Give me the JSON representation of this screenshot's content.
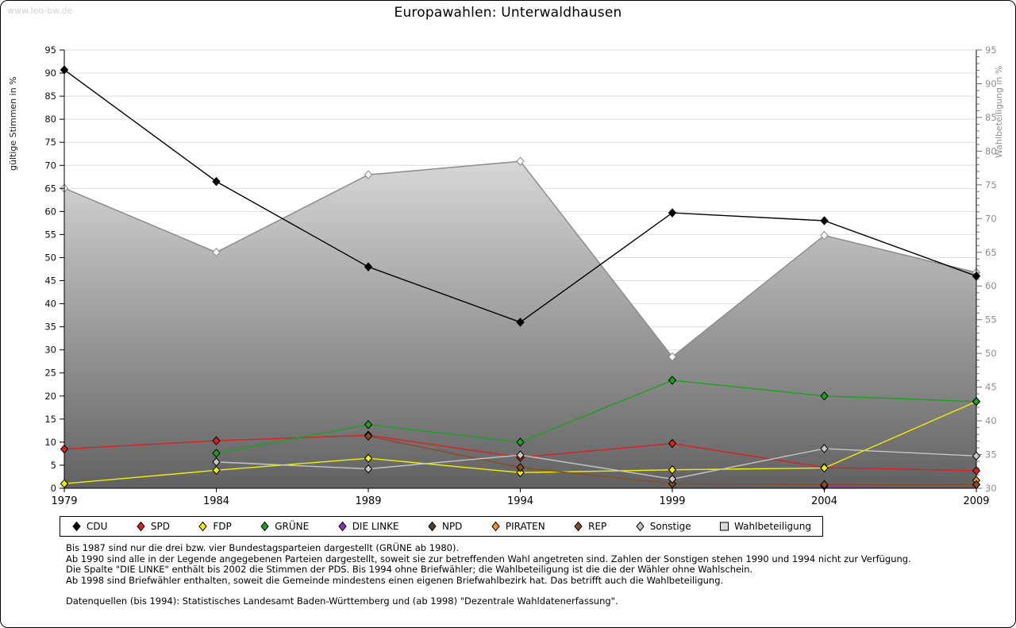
{
  "watermark": "www.leo-bw.de",
  "title": "Europawahlen: Unterwaldhausen",
  "axes": {
    "left_label": "gültige Stimmen in %",
    "right_label": "Wahlbeteiligung in %"
  },
  "chart_data": {
    "type": "line",
    "x": [
      1979,
      1984,
      1989,
      1994,
      1999,
      2004,
      2009
    ],
    "left_axis": {
      "label": "gültige Stimmen in %",
      "min": 0,
      "max": 95,
      "step": 5
    },
    "right_axis": {
      "label": "Wahlbeteiligung in %",
      "min": 30,
      "max": 95,
      "step": 5
    },
    "grid": true,
    "legend_position": "bottom",
    "series": [
      {
        "name": "CDU",
        "color": "#000000",
        "axis": "left",
        "values": [
          90.7,
          66.5,
          48.0,
          36.0,
          59.7,
          58.0,
          46.0
        ]
      },
      {
        "name": "SPD",
        "color": "#d92121",
        "axis": "left",
        "values": [
          8.5,
          10.3,
          11.5,
          6.7,
          9.7,
          4.5,
          3.8
        ]
      },
      {
        "name": "FDP",
        "color": "#f2ee00",
        "axis": "left",
        "values": [
          1.0,
          3.9,
          6.5,
          3.4,
          4.0,
          4.4,
          18.8
        ]
      },
      {
        "name": "GRÜNE",
        "color": "#1ca11c",
        "axis": "left",
        "values": [
          null,
          7.6,
          13.8,
          10.0,
          23.4,
          20.0,
          18.8
        ]
      },
      {
        "name": "DIE LINKE",
        "color": "#8a33c4",
        "axis": "left",
        "values": [
          null,
          null,
          null,
          null,
          null,
          0.5,
          0.8
        ]
      },
      {
        "name": "NPD",
        "color": "#54402e",
        "axis": "left",
        "values": [
          null,
          null,
          null,
          null,
          null,
          null,
          null
        ]
      },
      {
        "name": "PIRATEN",
        "color": "#f79420",
        "axis": "left",
        "values": [
          null,
          null,
          null,
          null,
          null,
          null,
          1.7
        ]
      },
      {
        "name": "REP",
        "color": "#8b4a25",
        "axis": "left",
        "values": [
          null,
          null,
          11.3,
          4.5,
          1.0,
          0.8,
          0.8
        ]
      },
      {
        "name": "Sonstige",
        "color": "#c6c6c6",
        "axis": "left",
        "values": [
          null,
          5.7,
          4.2,
          7.2,
          2.0,
          8.6,
          7.0
        ]
      },
      {
        "name": "Wahlbeteiligung",
        "color": "#8c8c8c",
        "axis": "right",
        "type": "area",
        "values": [
          74.5,
          65.0,
          76.5,
          78.5,
          49.5,
          67.5,
          62.0
        ]
      }
    ]
  },
  "footnotes": {
    "lines": [
      "Bis 1987 sind nur die drei bzw. vier Bundestagsparteien dargestellt (GRÜNE ab 1980).",
      "Ab 1990 sind alle in der Legende angegebenen Parteien dargestellt, soweit sie zur betreffenden Wahl angetreten sind. Zahlen der Sonstigen stehen 1990 und 1994 nicht zur Verfügung.",
      "Die Spalte \"DIE LINKE\" enthält bis 2002 die Stimmen der PDS. Bis 1994 ohne Briefwähler; die Wahlbeteiligung ist die die der Wähler ohne Wahlschein.",
      "Ab 1998 sind Briefwähler enthalten, soweit die Gemeinde mindestens einen eigenen Briefwahlbezirk hat. Das betrifft auch die Wahlbeteiligung."
    ],
    "source": "Datenquellen (bis 1994): Statistisches Landesamt Baden-Württemberg und (ab 1998) \"Dezentrale Wahldatenerfassung\"."
  }
}
